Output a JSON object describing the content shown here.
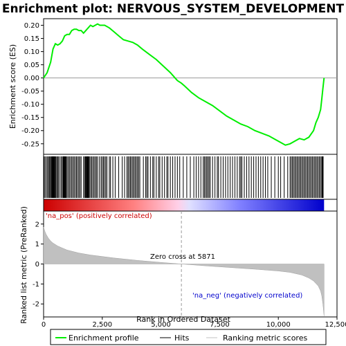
{
  "chart_data": {
    "type": "line",
    "title": "Enrichment plot: NERVOUS_SYSTEM_DEVELOPMENT",
    "top_panel": {
      "ylabel": "Enrichment score (ES)",
      "ylim": [
        -0.29,
        0.225
      ],
      "yticks": [
        0.2,
        0.15,
        0.1,
        0.05,
        0.0,
        -0.05,
        -0.1,
        -0.15,
        -0.2,
        -0.25
      ],
      "ytick_labels": [
        "0.20",
        "0.15",
        "0.10",
        "0.05",
        "0.00",
        "-0.05",
        "-0.10",
        "-0.15",
        "-0.20",
        "-0.25"
      ],
      "line_color": "#00ee00",
      "series": [
        {
          "x": [
            0,
            150,
            300,
            400,
            500,
            600,
            700,
            800,
            900,
            1000,
            1100,
            1200,
            1300,
            1400,
            1500,
            1600,
            1700,
            1800,
            1900,
            2000,
            2100,
            2200,
            2300,
            2400,
            2500,
            2600,
            2700,
            2800,
            3000,
            3200,
            3400,
            3600,
            3800,
            4000,
            4200,
            4500,
            4800,
            5100,
            5400,
            5700,
            5871,
            6000,
            6300,
            6600,
            6900,
            7200,
            7500,
            7800,
            8100,
            8400,
            8700,
            9000,
            9300,
            9600,
            9900,
            10100,
            10300,
            10500,
            10700,
            10900,
            11100,
            11300,
            11500,
            11600,
            11700,
            11800,
            11850,
            11900,
            11950
          ],
          "values": [
            0.0,
            0.02,
            0.06,
            0.11,
            0.13,
            0.125,
            0.13,
            0.14,
            0.16,
            0.165,
            0.165,
            0.18,
            0.185,
            0.185,
            0.18,
            0.18,
            0.17,
            0.18,
            0.19,
            0.2,
            0.195,
            0.2,
            0.205,
            0.2,
            0.2,
            0.2,
            0.195,
            0.19,
            0.175,
            0.16,
            0.145,
            0.14,
            0.135,
            0.125,
            0.11,
            0.09,
            0.07,
            0.045,
            0.02,
            -0.01,
            -0.02,
            -0.03,
            -0.055,
            -0.075,
            -0.09,
            -0.105,
            -0.125,
            -0.145,
            -0.16,
            -0.175,
            -0.185,
            -0.2,
            -0.21,
            -0.22,
            -0.235,
            -0.245,
            -0.255,
            -0.25,
            -0.24,
            -0.23,
            -0.235,
            -0.225,
            -0.2,
            -0.17,
            -0.15,
            -0.12,
            -0.08,
            -0.04,
            0.0
          ]
        }
      ]
    },
    "hits": [
      30,
      80,
      140,
      180,
      230,
      260,
      300,
      330,
      360,
      380,
      400,
      420,
      440,
      460,
      490,
      520,
      560,
      600,
      640,
      700,
      760,
      800,
      840,
      870,
      900,
      930,
      960,
      1000,
      1050,
      1100,
      1150,
      1200,
      1250,
      1300,
      1350,
      1400,
      1450,
      1500,
      1550,
      1600,
      1700,
      1750,
      1780,
      1810,
      1840,
      1860,
      1880,
      1900,
      1920,
      1950,
      2000,
      2050,
      2100,
      2150,
      2200,
      2250,
      2300,
      2380,
      2450,
      2500,
      2550,
      2600,
      2650,
      2700,
      2800,
      2850,
      2950,
      3050,
      3200,
      3350,
      3450,
      3550,
      3600,
      3650,
      3700,
      3750,
      3800,
      3850,
      3900,
      3950,
      4000,
      4050,
      4100,
      4250,
      4350,
      4400,
      4450,
      4550,
      4650,
      4700,
      4800,
      4900,
      4950,
      5050,
      5150,
      5250,
      5300,
      5400,
      5500,
      5600,
      5700,
      5800,
      5950,
      6100,
      6250,
      6400,
      6500,
      6600,
      6700,
      6800,
      6850,
      6900,
      6950,
      7000,
      7050,
      7100,
      7200,
      7300,
      7400,
      7450,
      7550,
      7650,
      7750,
      7850,
      7950,
      8050,
      8150,
      8250,
      8350,
      8400,
      8450,
      8550,
      8650,
      8750,
      8850,
      8950,
      9050,
      9150,
      9250,
      9350,
      9450,
      9550,
      9700,
      9850,
      10000,
      10100,
      10250,
      10400,
      10500,
      10550,
      10600,
      10650,
      10700,
      10750,
      10800,
      10850,
      10900,
      10950,
      11000,
      11050,
      11100,
      11150,
      11200,
      11250,
      11300,
      11350,
      11400,
      11450,
      11500,
      11550,
      11600,
      11650,
      11700,
      11750,
      11800,
      11850,
      11880,
      11910
    ],
    "bottom_panel": {
      "ylabel": "Ranked list metric (PreRanked)",
      "ylim": [
        -2.65,
        2.65
      ],
      "yticks": [
        2,
        1,
        0,
        -1,
        -2
      ],
      "ytick_labels": [
        "2",
        "1",
        "0",
        "-1",
        "-2"
      ],
      "fill_color": "#c0c0c0",
      "metric_x": [
        0,
        50,
        100,
        200,
        300,
        400,
        600,
        800,
        1000,
        1500,
        2000,
        3000,
        4000,
        5000,
        5871,
        7000,
        8000,
        9000,
        10000,
        10500,
        11000,
        11300,
        11500,
        11700,
        11800,
        11850,
        11900,
        11950
      ],
      "metric_values": [
        1.85,
        1.65,
        1.5,
        1.3,
        1.15,
        1.05,
        0.9,
        0.8,
        0.7,
        0.55,
        0.45,
        0.3,
        0.18,
        0.08,
        0.0,
        -0.1,
        -0.18,
        -0.26,
        -0.35,
        -0.42,
        -0.55,
        -0.7,
        -0.85,
        -1.1,
        -1.35,
        -1.6,
        -2.0,
        -2.6
      ]
    },
    "xlabel": "Rank in Ordered Dataset",
    "xlim": [
      0,
      12500
    ],
    "xticks": [
      0,
      2500,
      5000,
      7500,
      10000,
      12500
    ],
    "xtick_labels": [
      "0",
      "2,500",
      "5,000",
      "7,500",
      "10,000",
      "12,500"
    ],
    "n_genes": 11950,
    "zero_cross": 5871,
    "zero_cross_label": "Zero cross at 5871",
    "pos_label": "'na_pos' (positively correlated)",
    "neg_label": "'na_neg' (negatively correlated)",
    "pos_color": "#cc0000",
    "neg_color": "#0000cc",
    "legend": {
      "placement": "bottom",
      "items": [
        {
          "label": "Enrichment profile",
          "color": "#00ee00"
        },
        {
          "label": "Hits",
          "color": "#000000"
        },
        {
          "label": "Ranking metric scores",
          "color": "#c0c0c0"
        }
      ]
    }
  }
}
